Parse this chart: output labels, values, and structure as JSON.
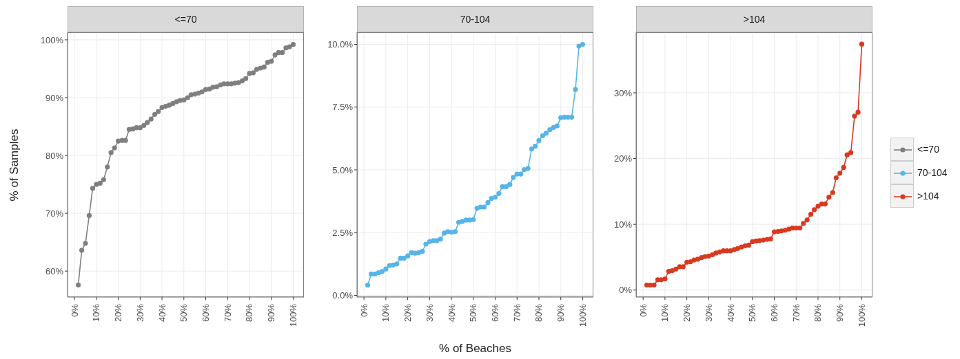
{
  "chart_data": [
    {
      "type": "line",
      "title": "<=70",
      "ylabel": "% of Samples",
      "x": [
        1.7,
        3.3,
        5,
        6.7,
        8.3,
        10,
        11.7,
        13.3,
        15,
        16.7,
        18.3,
        20,
        21.7,
        23.3,
        25,
        26.7,
        28.3,
        30,
        31.7,
        33.3,
        35,
        36.7,
        38.3,
        40,
        41.7,
        43.3,
        45,
        46.7,
        48.3,
        50,
        51.7,
        53.3,
        55,
        56.7,
        58.3,
        60,
        61.7,
        63.3,
        65,
        66.7,
        68.3,
        70,
        71.7,
        73.3,
        75,
        76.7,
        78.3,
        80,
        81.7,
        83.3,
        85,
        86.7,
        88.3,
        90,
        91.7,
        93.3,
        95,
        96.7,
        98.3,
        100
      ],
      "xlim": [
        -3.2,
        104.9
      ],
      "xticks": [
        {
          "value": 0,
          "label": "0%"
        },
        {
          "value": 10,
          "label": "10%"
        },
        {
          "value": 20,
          "label": "20%"
        },
        {
          "value": 30,
          "label": "30%"
        },
        {
          "value": 40,
          "label": "40%"
        },
        {
          "value": 50,
          "label": "50%"
        },
        {
          "value": 60,
          "label": "60%"
        },
        {
          "value": 70,
          "label": "70%"
        },
        {
          "value": 80,
          "label": "80%"
        },
        {
          "value": 90,
          "label": "90%"
        },
        {
          "value": 100,
          "label": "100%"
        }
      ],
      "ylim": [
        55.5,
        101.3
      ],
      "yticks": [
        {
          "value": 60,
          "label": "60%"
        },
        {
          "value": 70,
          "label": "70%"
        },
        {
          "value": 80,
          "label": "80%"
        },
        {
          "value": 90,
          "label": "90%"
        },
        {
          "value": 100,
          "label": "100%"
        }
      ],
      "grid": true,
      "marker": "circle",
      "line_style": "solid",
      "series": [
        {
          "name": "<=70",
          "color": "#7f7f7f",
          "values": [
            57.6,
            63.6,
            64.8,
            69.6,
            74.3,
            75.0,
            75.2,
            75.8,
            78.0,
            80.5,
            81.3,
            82.5,
            82.6,
            82.6,
            84.5,
            84.6,
            84.8,
            84.8,
            85.2,
            85.7,
            86.3,
            87.1,
            87.6,
            88.3,
            88.5,
            88.7,
            89.0,
            89.3,
            89.5,
            89.6,
            90.0,
            90.5,
            90.6,
            90.8,
            91.0,
            91.4,
            91.5,
            91.8,
            91.9,
            92.2,
            92.4,
            92.4,
            92.4,
            92.5,
            92.6,
            92.9,
            93.3,
            94.2,
            94.3,
            94.9,
            95.1,
            95.3,
            96.1,
            96.3,
            97.4,
            97.8,
            97.8,
            98.6,
            98.8,
            99.2
          ]
        }
      ]
    },
    {
      "type": "line",
      "title": "70-104",
      "xlabel": "% of Beaches",
      "x": [
        1.7,
        3.3,
        5,
        6.7,
        8.3,
        10,
        11.7,
        13.3,
        15,
        16.7,
        18.3,
        20,
        21.7,
        23.3,
        25,
        26.7,
        28.3,
        30,
        31.7,
        33.3,
        35,
        36.7,
        38.3,
        40,
        41.7,
        43.3,
        45,
        46.7,
        48.3,
        50,
        51.7,
        53.3,
        55,
        56.7,
        58.3,
        60,
        61.7,
        63.3,
        65,
        66.7,
        68.3,
        70,
        71.7,
        73.3,
        75,
        76.7,
        78.3,
        80,
        81.7,
        83.3,
        85,
        86.7,
        88.3,
        90,
        91.7,
        93.3,
        95,
        96.7,
        98.3,
        100
      ],
      "xlim": [
        -3.2,
        104.9
      ],
      "xticks": [
        {
          "value": 0,
          "label": "0%"
        },
        {
          "value": 10,
          "label": "10%"
        },
        {
          "value": 20,
          "label": "20%"
        },
        {
          "value": 30,
          "label": "30%"
        },
        {
          "value": 40,
          "label": "40%"
        },
        {
          "value": 50,
          "label": "50%"
        },
        {
          "value": 60,
          "label": "60%"
        },
        {
          "value": 70,
          "label": "70%"
        },
        {
          "value": 80,
          "label": "80%"
        },
        {
          "value": 90,
          "label": "90%"
        },
        {
          "value": 100,
          "label": "100%"
        }
      ],
      "ylim": [
        -0.07,
        10.48
      ],
      "yticks": [
        {
          "value": 0,
          "label": "0.0%"
        },
        {
          "value": 2.5,
          "label": "2.5%"
        },
        {
          "value": 5,
          "label": "5.0%"
        },
        {
          "value": 7.5,
          "label": "7.5%"
        },
        {
          "value": 10,
          "label": "10.0%"
        }
      ],
      "grid": true,
      "marker": "circle",
      "line_style": "solid",
      "series": [
        {
          "name": "70-104",
          "color": "#56b4e9",
          "values": [
            0.41,
            0.85,
            0.85,
            0.9,
            0.95,
            1.05,
            1.19,
            1.21,
            1.25,
            1.48,
            1.48,
            1.57,
            1.7,
            1.68,
            1.7,
            1.75,
            2.04,
            2.14,
            2.18,
            2.18,
            2.24,
            2.48,
            2.54,
            2.52,
            2.54,
            2.91,
            2.95,
            3.0,
            3.0,
            3.02,
            3.47,
            3.52,
            3.52,
            3.7,
            3.86,
            3.91,
            4.06,
            4.33,
            4.33,
            4.42,
            4.7,
            4.83,
            4.83,
            5.01,
            5.06,
            5.83,
            5.94,
            6.17,
            6.36,
            6.46,
            6.6,
            6.69,
            6.75,
            7.08,
            7.1,
            7.1,
            7.1,
            8.2,
            9.93,
            10.0
          ]
        }
      ]
    },
    {
      "type": "line",
      "title": ">104",
      "x": [
        1.7,
        3.3,
        5,
        6.7,
        8.3,
        10,
        11.7,
        13.3,
        15,
        16.7,
        18.3,
        20,
        21.7,
        23.3,
        25,
        26.7,
        28.3,
        30,
        31.7,
        33.3,
        35,
        36.7,
        38.3,
        40,
        41.7,
        43.3,
        45,
        46.7,
        48.3,
        50,
        51.7,
        53.3,
        55,
        56.7,
        58.3,
        60,
        61.7,
        63.3,
        65,
        66.7,
        68.3,
        70,
        71.7,
        73.3,
        75,
        76.7,
        78.3,
        80,
        81.7,
        83.3,
        85,
        86.7,
        88.3,
        90,
        91.7,
        93.3,
        95,
        96.7,
        98.3,
        100
      ],
      "xlim": [
        -3.2,
        104.9
      ],
      "xticks": [
        {
          "value": 0,
          "label": "0%"
        },
        {
          "value": 10,
          "label": "10%"
        },
        {
          "value": 20,
          "label": "20%"
        },
        {
          "value": 30,
          "label": "30%"
        },
        {
          "value": 40,
          "label": "40%"
        },
        {
          "value": 50,
          "label": "50%"
        },
        {
          "value": 60,
          "label": "60%"
        },
        {
          "value": 70,
          "label": "70%"
        },
        {
          "value": 80,
          "label": "80%"
        },
        {
          "value": 90,
          "label": "90%"
        },
        {
          "value": 100,
          "label": "100%"
        }
      ],
      "ylim": [
        -1.07,
        39.2
      ],
      "yticks": [
        {
          "value": 0,
          "label": "0%"
        },
        {
          "value": 10,
          "label": "10%"
        },
        {
          "value": 20,
          "label": "20%"
        },
        {
          "value": 30,
          "label": "30%"
        }
      ],
      "grid": true,
      "marker": "circle",
      "line_style": "solid",
      "legend": "right",
      "series": [
        {
          "name": ">104",
          "color": "#d8391f",
          "values": [
            0.76,
            0.76,
            0.76,
            1.56,
            1.56,
            1.7,
            2.85,
            2.95,
            3.19,
            3.54,
            3.54,
            4.24,
            4.31,
            4.58,
            4.69,
            4.93,
            5.1,
            5.17,
            5.38,
            5.63,
            5.8,
            5.97,
            5.97,
            5.97,
            6.15,
            6.32,
            6.56,
            6.74,
            6.84,
            7.36,
            7.47,
            7.53,
            7.6,
            7.71,
            7.78,
            8.85,
            8.92,
            8.99,
            9.1,
            9.27,
            9.44,
            9.44,
            9.44,
            10.14,
            10.66,
            11.53,
            12.22,
            12.74,
            13.09,
            13.09,
            14.13,
            14.83,
            17.08,
            17.78,
            18.65,
            20.56,
            20.9,
            26.46,
            27.05,
            37.4
          ]
        }
      ]
    }
  ]
}
